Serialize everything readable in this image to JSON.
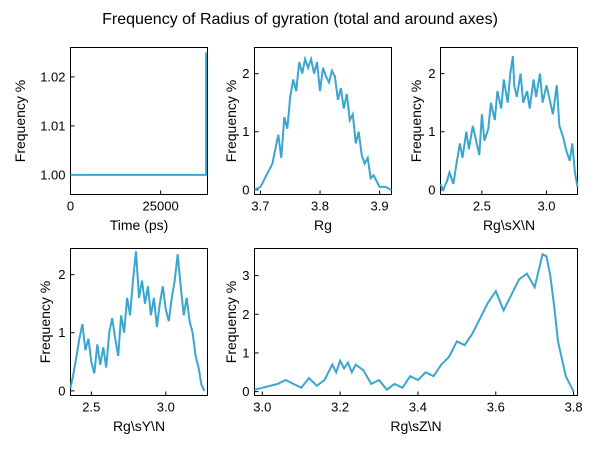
{
  "figure": {
    "title": "Frequency of Radius of gyration (total and around axes)",
    "line_color": "#3aa6cf"
  },
  "chart_data": [
    {
      "type": "line",
      "xlabel": "Time (ps)",
      "ylabel": "Frequency %",
      "xlim": [
        0,
        38000
      ],
      "ylim": [
        0.996,
        1.026
      ],
      "xticks": [
        0,
        25000
      ],
      "yticks": [
        1.0,
        1.01,
        1.02
      ],
      "ytick_decimals": 2,
      "series": [
        {
          "x": [
            0,
            5000,
            10000,
            15000,
            20000,
            25000,
            30000,
            35000,
            37600,
            37600
          ],
          "y": [
            1.0,
            1.0,
            1.0,
            1.0,
            1.0,
            1.0,
            1.0,
            1.0,
            1.0,
            1.025
          ]
        }
      ]
    },
    {
      "type": "line",
      "xlabel": "Rg",
      "ylabel": "Frequency %",
      "xlim": [
        3.69,
        3.92
      ],
      "ylim": [
        -0.08,
        2.45
      ],
      "xticks": [
        3.7,
        3.8,
        3.9
      ],
      "yticks": [
        0,
        1,
        2
      ],
      "xtick_decimals": 1,
      "series": [
        {
          "x": [
            3.69,
            3.7,
            3.71,
            3.72,
            3.725,
            3.73,
            3.735,
            3.74,
            3.745,
            3.75,
            3.755,
            3.76,
            3.765,
            3.77,
            3.775,
            3.78,
            3.785,
            3.79,
            3.795,
            3.8,
            3.805,
            3.81,
            3.815,
            3.82,
            3.825,
            3.83,
            3.835,
            3.84,
            3.845,
            3.85,
            3.855,
            3.86,
            3.865,
            3.87,
            3.875,
            3.88,
            3.885,
            3.89,
            3.9,
            3.91,
            3.92
          ],
          "y": [
            0.0,
            0.05,
            0.25,
            0.45,
            0.7,
            0.95,
            0.55,
            1.25,
            1.05,
            1.6,
            1.9,
            1.7,
            2.2,
            2.0,
            2.25,
            2.1,
            2.25,
            2.0,
            2.2,
            1.7,
            2.1,
            1.95,
            1.85,
            2.05,
            1.95,
            1.55,
            1.75,
            1.4,
            1.65,
            1.2,
            1.3,
            0.8,
            1.0,
            0.6,
            0.45,
            0.55,
            0.2,
            0.25,
            0.05,
            0.05,
            0.0
          ]
        }
      ]
    },
    {
      "type": "line",
      "xlabel": "Rg\\sX\\N",
      "ylabel": "Frequency %",
      "xlim": [
        2.18,
        3.24
      ],
      "ylim": [
        -0.08,
        2.45
      ],
      "xticks": [
        2.5,
        3.0
      ],
      "yticks": [
        0,
        1,
        2
      ],
      "xtick_decimals": 1,
      "series": [
        {
          "x": [
            2.18,
            2.2,
            2.23,
            2.25,
            2.28,
            2.3,
            2.33,
            2.35,
            2.38,
            2.4,
            2.43,
            2.45,
            2.48,
            2.5,
            2.52,
            2.55,
            2.57,
            2.6,
            2.62,
            2.65,
            2.67,
            2.7,
            2.72,
            2.74,
            2.75,
            2.77,
            2.8,
            2.82,
            2.85,
            2.87,
            2.9,
            2.92,
            2.95,
            2.97,
            3.0,
            3.02,
            3.05,
            3.08,
            3.1,
            3.13,
            3.15,
            3.18,
            3.2,
            3.22,
            3.24
          ],
          "y": [
            0.1,
            0.0,
            0.15,
            0.3,
            0.1,
            0.4,
            0.8,
            0.55,
            1.0,
            0.7,
            1.1,
            0.9,
            0.6,
            1.3,
            0.85,
            1.05,
            1.5,
            1.2,
            1.7,
            1.4,
            1.9,
            1.5,
            2.0,
            2.3,
            1.8,
            1.6,
            2.0,
            1.5,
            1.7,
            1.4,
            1.9,
            1.6,
            2.0,
            1.5,
            1.8,
            1.6,
            1.3,
            1.8,
            1.1,
            0.9,
            0.7,
            0.5,
            0.8,
            0.3,
            0.05
          ]
        }
      ]
    },
    {
      "type": "line",
      "xlabel": "Rg\\sY\\N",
      "ylabel": "Frequency %",
      "xlim": [
        2.36,
        3.28
      ],
      "ylim": [
        -0.08,
        2.45
      ],
      "xticks": [
        2.5,
        3.0
      ],
      "yticks": [
        0,
        1,
        2
      ],
      "xtick_decimals": 1,
      "series": [
        {
          "x": [
            2.36,
            2.38,
            2.4,
            2.42,
            2.44,
            2.46,
            2.48,
            2.5,
            2.52,
            2.54,
            2.56,
            2.58,
            2.6,
            2.62,
            2.64,
            2.66,
            2.68,
            2.7,
            2.72,
            2.74,
            2.76,
            2.78,
            2.8,
            2.82,
            2.84,
            2.86,
            2.88,
            2.9,
            2.92,
            2.94,
            2.96,
            2.98,
            3.0,
            3.02,
            3.04,
            3.06,
            3.08,
            3.1,
            3.12,
            3.14,
            3.16,
            3.18,
            3.2,
            3.22,
            3.24,
            3.26
          ],
          "y": [
            0.05,
            0.3,
            0.6,
            0.9,
            1.15,
            0.7,
            0.9,
            0.5,
            0.3,
            0.8,
            0.45,
            0.75,
            0.4,
            1.0,
            1.25,
            0.9,
            0.6,
            1.3,
            1.0,
            1.6,
            1.3,
            1.9,
            2.4,
            1.6,
            1.9,
            1.5,
            1.8,
            1.3,
            1.6,
            1.1,
            1.5,
            1.8,
            1.4,
            1.2,
            1.6,
            1.9,
            2.35,
            1.8,
            1.3,
            1.6,
            1.2,
            1.0,
            0.6,
            0.4,
            0.1,
            0.0
          ]
        }
      ]
    },
    {
      "type": "line",
      "xlabel": "Rg\\sZ\\N",
      "ylabel": "Frequency %",
      "xlim": [
        2.98,
        3.81
      ],
      "ylim": [
        -0.1,
        3.7
      ],
      "xticks": [
        3.0,
        3.2,
        3.4,
        3.6,
        3.8
      ],
      "yticks": [
        0,
        1,
        2,
        3
      ],
      "xtick_decimals": 1,
      "series": [
        {
          "x": [
            2.98,
            3.0,
            3.02,
            3.04,
            3.06,
            3.08,
            3.1,
            3.12,
            3.14,
            3.16,
            3.18,
            3.19,
            3.2,
            3.21,
            3.22,
            3.23,
            3.24,
            3.26,
            3.28,
            3.3,
            3.32,
            3.34,
            3.36,
            3.38,
            3.4,
            3.42,
            3.44,
            3.46,
            3.48,
            3.5,
            3.52,
            3.54,
            3.56,
            3.58,
            3.6,
            3.62,
            3.64,
            3.66,
            3.68,
            3.7,
            3.72,
            3.73,
            3.74,
            3.75,
            3.76,
            3.78,
            3.8
          ],
          "y": [
            0.05,
            0.1,
            0.15,
            0.2,
            0.3,
            0.2,
            0.1,
            0.35,
            0.15,
            0.3,
            0.7,
            0.5,
            0.8,
            0.6,
            0.75,
            0.5,
            0.7,
            0.55,
            0.2,
            0.3,
            0.05,
            0.2,
            0.1,
            0.4,
            0.3,
            0.5,
            0.4,
            0.7,
            0.9,
            1.3,
            1.2,
            1.5,
            1.9,
            2.3,
            2.6,
            2.1,
            2.5,
            2.9,
            3.05,
            2.7,
            3.55,
            3.5,
            3.0,
            2.2,
            1.3,
            0.4,
            0.0
          ]
        }
      ]
    }
  ]
}
